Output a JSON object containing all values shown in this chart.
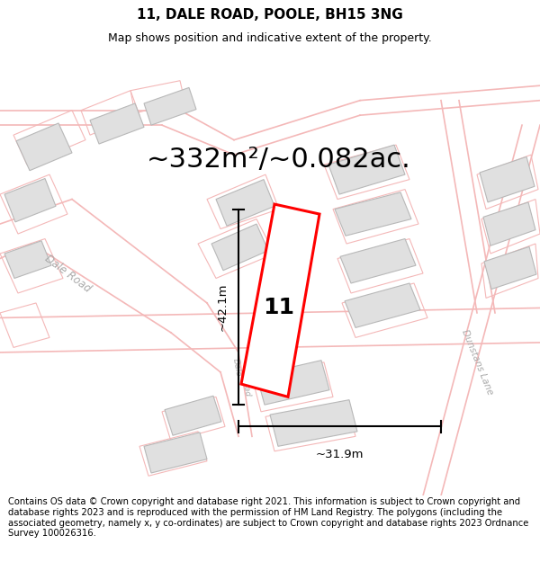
{
  "title": "11, DALE ROAD, POOLE, BH15 3NG",
  "subtitle": "Map shows position and indicative extent of the property.",
  "area_text": "~332m²/~0.082ac.",
  "dim_width": "~31.9m",
  "dim_height": "~42.1m",
  "property_number": "11",
  "map_bg": "#ffffff",
  "road_line_color": "#f4b8b8",
  "building_fill": "#e0e0e0",
  "building_outline": "#b8b8b8",
  "highlight_fill": "#ffffff",
  "highlight_outline": "#ff0000",
  "road_label_color": "#bbbbbb",
  "footer_text": "Contains OS data © Crown copyright and database right 2021. This information is subject to Crown copyright and database rights 2023 and is reproduced with the permission of HM Land Registry. The polygons (including the associated geometry, namely x, y co-ordinates) are subject to Crown copyright and database rights 2023 Ordnance Survey 100026316.",
  "title_fontsize": 11,
  "subtitle_fontsize": 9,
  "area_fontsize": 22,
  "footer_fontsize": 7.2,
  "dim_fontsize": 9.5,
  "label_fontsize": 8.5,
  "prop_label_fontsize": 18
}
